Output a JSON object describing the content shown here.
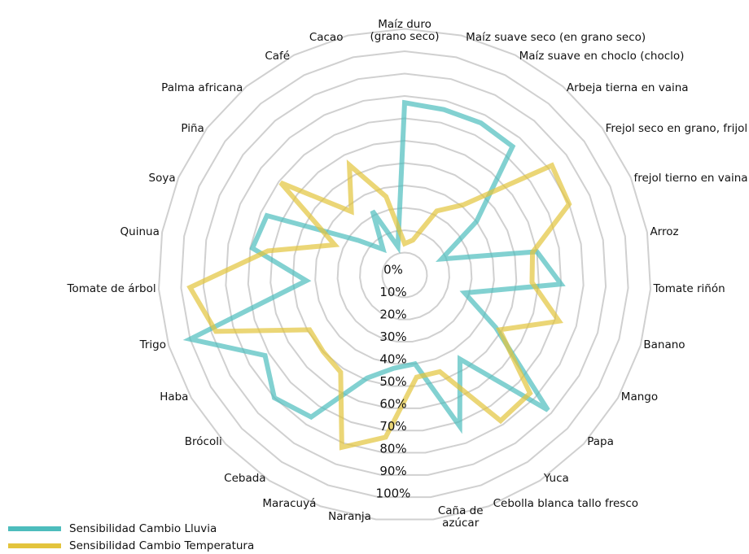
{
  "chart_data": {
    "type": "radar",
    "categories": [
      "Maíz duro\n(grano seco)",
      "Maíz suave seco (en grano seco)",
      "Maíz suave en choclo (choclo)",
      "Arbeja tierna en vaina",
      "Frejol seco en grano, frijol",
      "frejol tierno en vaina",
      "Arroz",
      "Tomate riñón",
      "Banano",
      "Mango",
      "Papa",
      "Yuca",
      "Cebolla blanca tallo fresco",
      "Caña de\nazúcar",
      "Naranja",
      "Maracuyá",
      "Cebada",
      "Brócoli",
      "Haba",
      "Trigo",
      "Tomate de árbol",
      "Quinua",
      "Soya",
      "Piña",
      "Palma africana",
      "Café",
      "Cacao"
    ],
    "series": [
      {
        "name": "Sensibilidad Cambio Lluvia",
        "color": "#4dbdbd",
        "values": [
          77,
          76,
          76,
          75,
          40,
          18,
          60,
          70,
          28,
          47,
          88,
          45,
          72,
          40,
          42,
          49,
          76,
          80,
          72,
          100,
          44,
          69,
          67,
          26,
          15,
          32,
          13
        ]
      },
      {
        "name": "Sensibilidad Cambio Temperatura",
        "color": "#e3c43c",
        "values": [
          14,
          16,
          32,
          41,
          82,
          80,
          58,
          57,
          72,
          49,
          77,
          78,
          46,
          46,
          73,
          82,
          52,
          50,
          49,
          88,
          96,
          62,
          34,
          69,
          37,
          55,
          36
        ]
      }
    ],
    "ylim": [
      0,
      110
    ],
    "yticks": [
      {
        "value": 0,
        "label": "0%"
      },
      {
        "value": 10,
        "label": "10%"
      },
      {
        "value": 20,
        "label": "20%"
      },
      {
        "value": 30,
        "label": "30%"
      },
      {
        "value": 40,
        "label": "40%"
      },
      {
        "value": 50,
        "label": "50%"
      },
      {
        "value": 60,
        "label": "60%"
      },
      {
        "value": 70,
        "label": "70%"
      },
      {
        "value": 80,
        "label": "80%"
      },
      {
        "value": 90,
        "label": "90%"
      },
      {
        "value": 100,
        "label": "100%"
      }
    ],
    "grid": true,
    "legend": "bottom-left"
  }
}
